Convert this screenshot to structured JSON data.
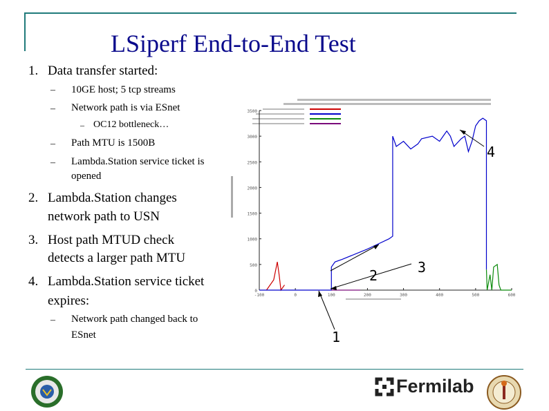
{
  "slide": {
    "title": "LSiperf End-to-End Test",
    "items": [
      {
        "num": "1.",
        "text": "Data transfer started:"
      },
      {
        "num": "2.",
        "line1": "Lambda.Station changes",
        "line2": "network path to USN"
      },
      {
        "num": "3.",
        "line1": "Host path MTUD check",
        "line2": "detects a larger path MTU"
      },
      {
        "num": "4.",
        "line1": "Lambda.Station service ticket",
        "line2": "expires:"
      }
    ],
    "sub1": [
      "10GE host; 5 tcp streams",
      "Network path is via ESnet",
      "OC12 bottleneck…",
      "Path MTU is 1500B",
      "Lambda.Station service ticket is",
      "opened"
    ],
    "sub4": [
      "Network path changed back to",
      "ESnet"
    ],
    "dash": "–"
  },
  "annotations": [
    "1",
    "2",
    "3",
    "4"
  ],
  "logos": {
    "fermilab": "Fermilab",
    "doe_seal": "doe-seal-icon",
    "university_seal": "university-seal-icon",
    "fermilab_mark": "fermilab-mark-icon"
  },
  "chart_data": {
    "type": "line",
    "title": "",
    "ylabel": "",
    "xlabel": "",
    "y_ticks": [
      "3500",
      "3000",
      "2500",
      "2000",
      "1500",
      "1000",
      "500",
      "0"
    ],
    "x_ticks": [
      "-100",
      "0",
      "100",
      "200",
      "300",
      "400",
      "500",
      "600"
    ],
    "xlim": [
      -100,
      600
    ],
    "ylim": [
      0,
      3500
    ],
    "legend": "top-left",
    "series": [
      {
        "color": "#cc0000",
        "points": [
          [
            -80,
            0
          ],
          [
            -60,
            200
          ],
          [
            -50,
            550
          ],
          [
            -45,
            300
          ],
          [
            -40,
            0
          ],
          [
            -30,
            100
          ]
        ]
      },
      {
        "color": "#0000cc",
        "points": [
          [
            -100,
            0
          ],
          [
            100,
            0
          ],
          [
            100,
            450
          ],
          [
            110,
            550
          ],
          [
            130,
            600
          ],
          [
            200,
            800
          ],
          [
            230,
            900
          ],
          [
            260,
            1000
          ],
          [
            270,
            1050
          ],
          [
            270,
            3000
          ],
          [
            280,
            2800
          ],
          [
            300,
            2900
          ],
          [
            320,
            2750
          ],
          [
            340,
            2850
          ],
          [
            350,
            2950
          ],
          [
            380,
            3000
          ],
          [
            400,
            2900
          ],
          [
            410,
            3000
          ],
          [
            420,
            3100
          ],
          [
            430,
            3000
          ],
          [
            440,
            2800
          ],
          [
            460,
            2950
          ],
          [
            470,
            3000
          ],
          [
            480,
            2700
          ],
          [
            490,
            2900
          ],
          [
            500,
            3200
          ],
          [
            510,
            3300
          ],
          [
            520,
            3350
          ],
          [
            530,
            3300
          ],
          [
            530,
            400
          ]
        ]
      },
      {
        "color": "#0a8a0a",
        "points": [
          [
            530,
            400
          ],
          [
            532,
            0
          ],
          [
            540,
            300
          ],
          [
            545,
            0
          ],
          [
            550,
            450
          ],
          [
            560,
            500
          ],
          [
            565,
            100
          ],
          [
            570,
            0
          ],
          [
            600,
            0
          ]
        ]
      },
      {
        "color": "#7a0a7a",
        "points": [
          [
            100,
            0
          ],
          [
            170,
            0
          ],
          [
            180,
            0
          ]
        ]
      }
    ]
  }
}
